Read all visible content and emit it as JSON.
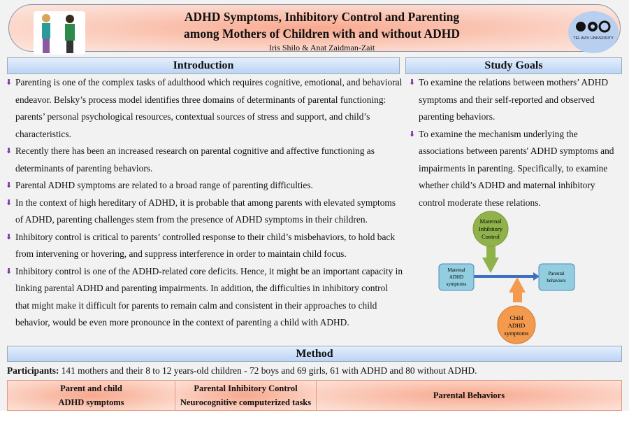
{
  "header": {
    "title_line1": "ADHD Symptoms, Inhibitory Control and Parenting",
    "title_line2": "among Mothers of Children with and without ADHD",
    "authors": "Iris Shilo & Anat Zaidman-Zait",
    "logo_text": "TEL AVIV UNIVERSITY אוניברסיטת תל-אביב"
  },
  "introduction": {
    "title": "Introduction",
    "bullets": [
      "Parenting is one of the complex tasks of adulthood which requires cognitive, emotional, and behavioral endeavor. Belsky’s process model identifies three domains of determinants of parental functioning:  parents’ personal psychological resources, contextual sources of stress and support, and child’s characteristics.",
      "Recently there has been an increased research on parental cognitive and affective functioning as determinants of parenting behaviors.",
      "Parental ADHD symptoms are related to a broad range of parenting difficulties.",
      "In the context of high hereditary of ADHD, it is probable that among parents with elevated symptoms of ADHD, parenting challenges stem from the presence of ADHD symptoms in their children.",
      "Inhibitory control is critical to parents’ controlled response to their child’s misbehaviors, to hold back from intervening or hovering, and suppress interference in order to maintain child focus.",
      "Inhibitory control is one of the ADHD-related core deficits. Hence, it might be an important capacity in linking parental ADHD and parenting impairments. In addition, the difficulties in inhibitory control that might make it difficult for parents to remain calm and consistent in their approaches to child behavior, would be even more pronounce in the context of parenting a child with ADHD."
    ]
  },
  "study_goals": {
    "title": "Study Goals",
    "bullets": [
      "To examine the relations between mothers’ ADHD symptoms and their self-reported and observed parenting behaviors.",
      "To examine the mechanism underlying the associations between parents' ADHD symptoms and impairments in parenting. Specifically, to examine whether child’s ADHD and maternal inhibitory control moderate these relations."
    ]
  },
  "diagram": {
    "moderator1": [
      "Maternal",
      "Inhibitory",
      "Control"
    ],
    "predictor": [
      "Maternal",
      "ADHD",
      "symptoms"
    ],
    "outcome": [
      "Parental",
      "behaviors"
    ],
    "moderator2": [
      "Child",
      "ADHD",
      "symptoms"
    ],
    "colors": {
      "green": "#8fb24a",
      "orange": "#f39a4e",
      "blue": "#92cde0"
    }
  },
  "method": {
    "title": "Method",
    "participants_label": "Participants:",
    "participants_text": " 141 mothers and their 8 to 12 years-old children - 72 boys and 69 girls, 61 with ADHD and 80 without ADHD.",
    "table_headers": [
      [
        "Parent and child",
        "ADHD symptoms"
      ],
      [
        "Parental Inhibitory Control",
        "Neurocognitive computerized tasks"
      ],
      [
        "Parental Behaviors"
      ]
    ]
  }
}
